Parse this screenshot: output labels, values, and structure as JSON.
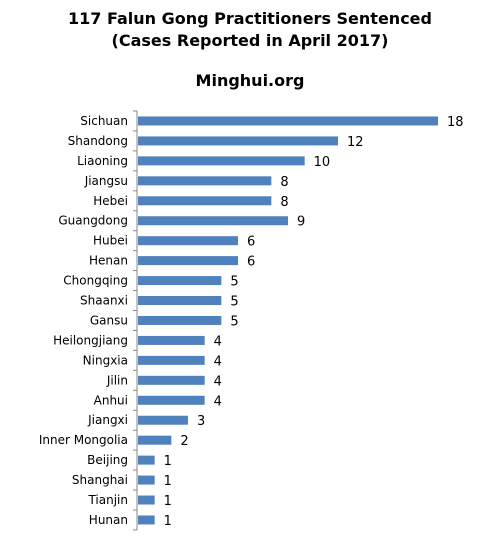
{
  "header": {
    "title_line1": "117 Falun Gong Practitioners Sentenced",
    "title_line2": "(Cases Reported in April 2017)",
    "source": "Minghui.org"
  },
  "chart_data": {
    "type": "bar",
    "orientation": "horizontal",
    "categories": [
      "Sichuan",
      "Shandong",
      "Liaoning",
      "Jiangsu",
      "Hebei",
      "Guangdong",
      "Hubei",
      "Henan",
      "Chongqing",
      "Shaanxi",
      "Gansu",
      "Heilongjiang",
      "Ningxia",
      "Jilin",
      "Anhui",
      "Jiangxi",
      "Inner Mongolia",
      "Beijing",
      "Shanghai",
      "Tianjin",
      "Hunan"
    ],
    "values": [
      18,
      12,
      10,
      8,
      8,
      9,
      6,
      6,
      5,
      5,
      5,
      4,
      4,
      4,
      4,
      3,
      2,
      1,
      1,
      1,
      1
    ],
    "bar_color": "#4f81bd",
    "xlim": [
      0,
      18
    ],
    "grid": false,
    "legend": false,
    "data_labels": true
  }
}
